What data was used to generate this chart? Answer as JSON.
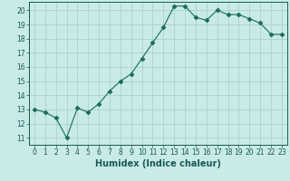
{
  "x": [
    0,
    1,
    2,
    3,
    4,
    5,
    6,
    7,
    8,
    9,
    10,
    11,
    12,
    13,
    14,
    15,
    16,
    17,
    18,
    19,
    20,
    21,
    22,
    23
  ],
  "y": [
    13.0,
    12.8,
    12.4,
    11.0,
    13.1,
    12.8,
    13.4,
    14.3,
    15.0,
    15.5,
    16.6,
    17.7,
    18.8,
    20.3,
    20.3,
    19.5,
    19.3,
    20.0,
    19.7,
    19.7,
    19.4,
    19.1,
    18.3,
    18.3
  ],
  "line_color": "#1a6b5a",
  "marker": "D",
  "marker_size": 2.5,
  "bg_color": "#c8eae8",
  "grid_color": "#a8ccc8",
  "xlabel": "Humidex (Indice chaleur)",
  "ylim": [
    10.5,
    20.6
  ],
  "xlim": [
    -0.5,
    23.5
  ],
  "yticks": [
    11,
    12,
    13,
    14,
    15,
    16,
    17,
    18,
    19,
    20
  ],
  "xticks": [
    0,
    1,
    2,
    3,
    4,
    5,
    6,
    7,
    8,
    9,
    10,
    11,
    12,
    13,
    14,
    15,
    16,
    17,
    18,
    19,
    20,
    21,
    22,
    23
  ],
  "tick_label_color": "#1a5a52",
  "xlabel_fontsize": 7,
  "tick_fontsize": 5.5
}
